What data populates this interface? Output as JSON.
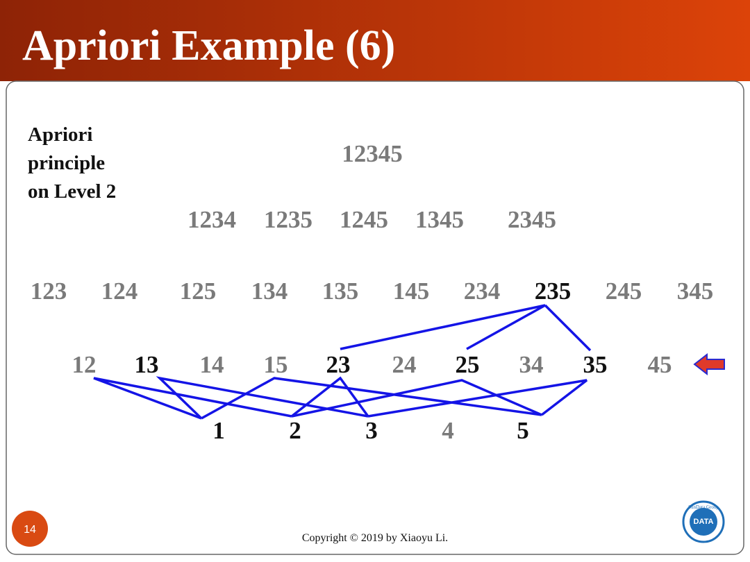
{
  "header": {
    "title": "Apriori Example (6)"
  },
  "note": [
    "Apriori",
    "principle",
    "on Level 2"
  ],
  "levels": {
    "level5": [
      "12345"
    ],
    "level4": [
      "1234",
      "1235",
      "1245",
      "1345",
      "2345"
    ],
    "level3": [
      "123",
      "124",
      "125",
      "134",
      "135",
      "145",
      "234",
      "235",
      "245",
      "345"
    ],
    "level2": [
      "12",
      "13",
      "14",
      "15",
      "23",
      "24",
      "25",
      "34",
      "35",
      "45"
    ],
    "level1": [
      "1",
      "2",
      "3",
      "4",
      "5"
    ]
  },
  "footer": {
    "page": "14",
    "copyright": "Copyright © 2019 by Xiaoyu Li."
  },
  "logo": {
    "ring": "SunData Group",
    "center": "DATA"
  }
}
